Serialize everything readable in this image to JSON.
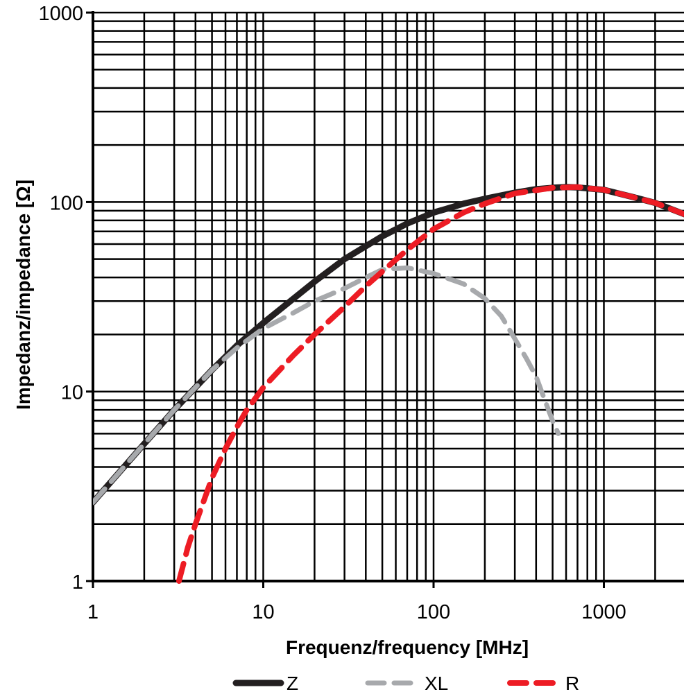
{
  "chart_data": {
    "type": "line",
    "title": "",
    "xlabel": "Frequenz/frequency [MHz]",
    "ylabel": "Impedanz/impedance [Ω]",
    "xscale": "log",
    "yscale": "log",
    "xlim": [
      1,
      3000
    ],
    "ylim": [
      1,
      1000
    ],
    "grid": true,
    "legend_position": "bottom",
    "x_ticks": [
      1,
      10,
      100,
      1000
    ],
    "x_tick_labels": [
      "1",
      "10",
      "100",
      "1000"
    ],
    "y_ticks": [
      1,
      10,
      100,
      1000
    ],
    "y_tick_labels": [
      "1",
      "10",
      "100",
      "1000"
    ],
    "series": [
      {
        "name": "Z",
        "color": "#231f20",
        "style": "solid",
        "x": [
          1,
          2,
          3,
          5,
          7,
          10,
          20,
          30,
          50,
          70,
          100,
          150,
          200,
          300,
          400,
          500,
          600,
          700,
          1000,
          1500,
          2000,
          3000
        ],
        "y": [
          2.6,
          5.3,
          8,
          13,
          17.5,
          23,
          38,
          50,
          66,
          77,
          88,
          98,
          104,
          112,
          117,
          119,
          120,
          119.5,
          116,
          106,
          99,
          86
        ]
      },
      {
        "name": "XL",
        "color": "#a7a9ac",
        "style": "dashed",
        "x": [
          1,
          2,
          3,
          5,
          7,
          10,
          15,
          20,
          30,
          40,
          50,
          70,
          100,
          150,
          200,
          250,
          300,
          350,
          400,
          450,
          500,
          540
        ],
        "y": [
          2.6,
          5.3,
          8,
          13,
          17,
          21.5,
          26,
          30,
          35,
          40,
          44,
          45,
          42,
          37,
          31,
          25,
          19,
          15,
          12,
          9,
          7,
          6
        ]
      },
      {
        "name": "R",
        "color": "#ed1c24",
        "style": "dashed",
        "x": [
          3.2,
          3.6,
          4,
          5,
          6,
          7,
          8,
          10,
          15,
          20,
          30,
          40,
          50,
          70,
          100,
          150,
          200,
          300,
          500,
          700,
          1000,
          1500,
          2000,
          3000
        ],
        "y": [
          1,
          1.5,
          2,
          3.5,
          5,
          6.5,
          8,
          10.5,
          15.5,
          20,
          28,
          36,
          43,
          56,
          72,
          88,
          98,
          111,
          119,
          120,
          116,
          106,
          99,
          86
        ]
      }
    ]
  }
}
